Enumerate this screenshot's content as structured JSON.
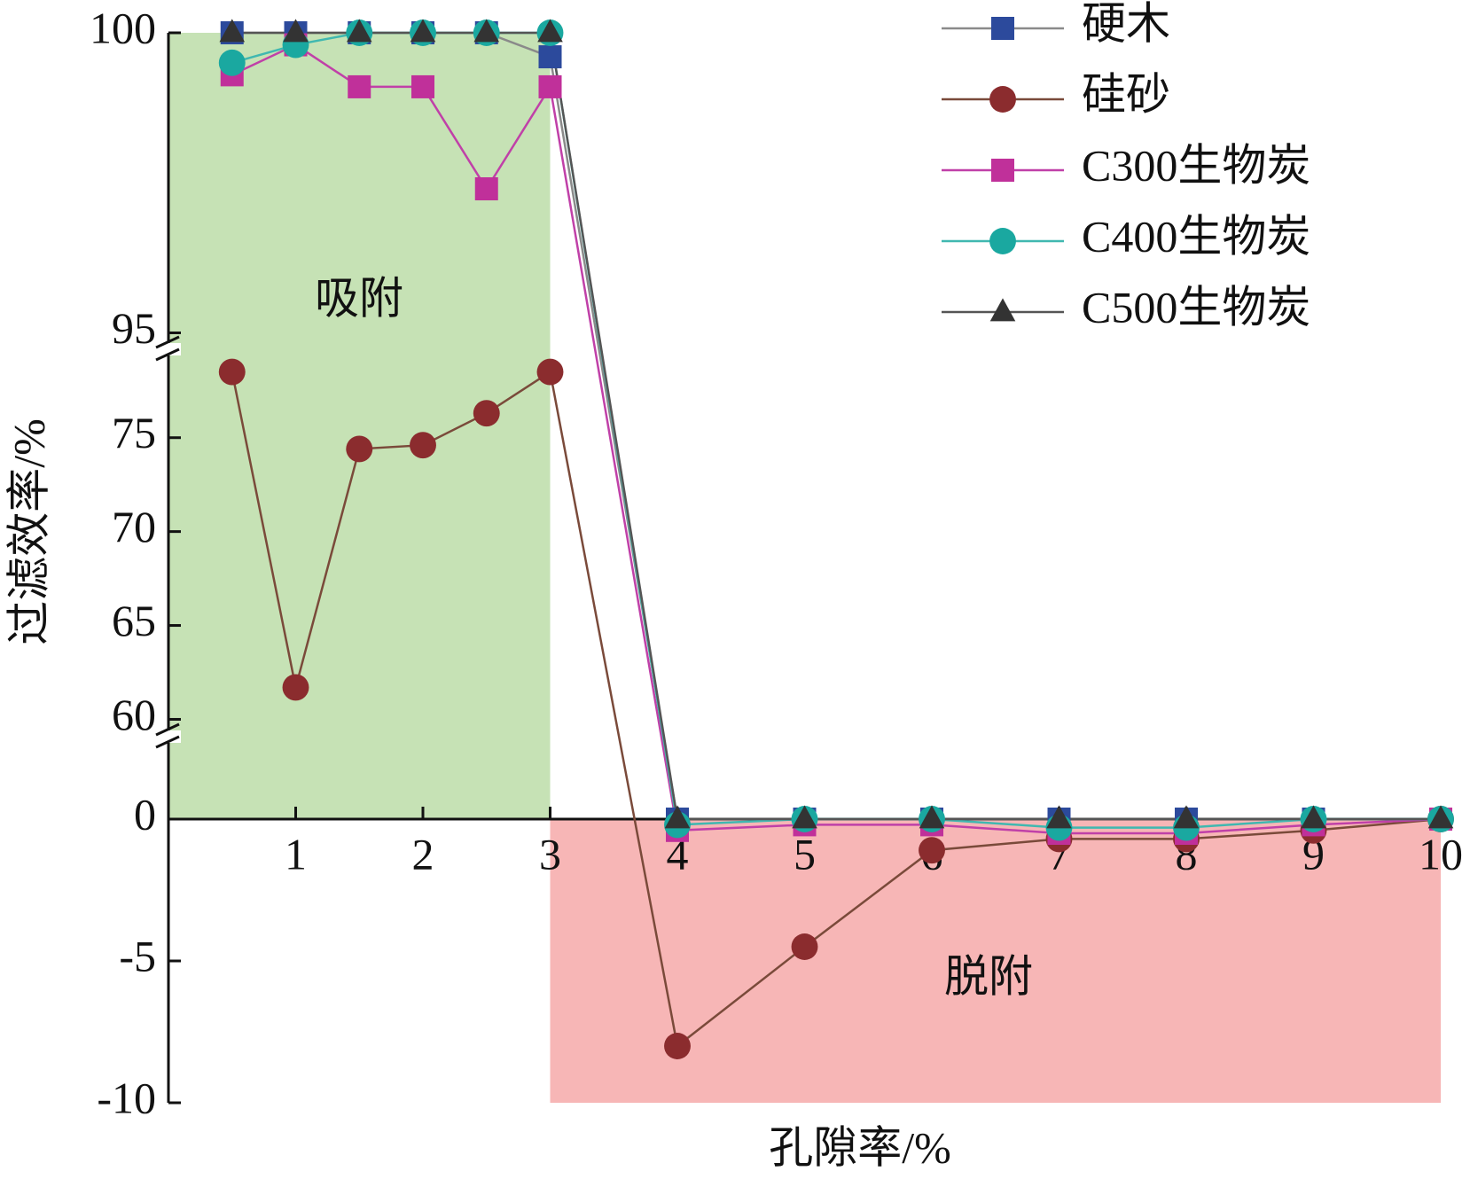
{
  "chart_data": {
    "type": "line",
    "x_label": "孔隙率/%",
    "y_label": "过滤效率/%",
    "x": [
      0.5,
      1,
      1.5,
      2,
      2.5,
      3,
      4,
      5,
      6,
      7,
      8,
      9,
      10
    ],
    "xlim": [
      0,
      10
    ],
    "xticks": [
      1,
      2,
      3,
      4,
      5,
      6,
      7,
      8,
      9,
      10
    ],
    "y_segments": [
      {
        "ylim": [
          -10,
          0
        ],
        "yticks": [
          -10,
          -5,
          0
        ]
      },
      {
        "ylim": [
          58.7,
          79
        ],
        "yticks": [
          60,
          65,
          70,
          75
        ]
      },
      {
        "ylim": [
          94.8,
          100
        ],
        "yticks": [
          95,
          100
        ]
      }
    ],
    "regions": [
      {
        "label": "吸附",
        "xlim": [
          0,
          3
        ],
        "ylim": [
          0,
          100
        ],
        "color": "#c6e2b5"
      },
      {
        "label": "脱附",
        "xlim": [
          3,
          10
        ],
        "ylim": [
          -10,
          0
        ],
        "color": "#f7b6b6"
      }
    ],
    "series": [
      {
        "name": "硬木",
        "color": "#2c4a9c",
        "line_color": "#8a8a8a",
        "marker": "square",
        "values": [
          100,
          100,
          100,
          100,
          100,
          99.6,
          0,
          0,
          0,
          0,
          0,
          0,
          0
        ]
      },
      {
        "name": "硅砂",
        "color": "#8b2c2e",
        "line_color": "#7a4a3a",
        "marker": "circle",
        "values": [
          78.5,
          61.7,
          74.4,
          74.6,
          76.3,
          78.5,
          -8,
          -4.5,
          -1.1,
          -0.7,
          -0.7,
          -0.4,
          0
        ]
      },
      {
        "name": "C300生物炭",
        "color": "#c0309a",
        "line_color": "#c040a8",
        "marker": "square",
        "values": [
          99.3,
          99.8,
          99.1,
          99.1,
          97.4,
          99.1,
          -0.4,
          -0.2,
          -0.2,
          -0.5,
          -0.5,
          -0.2,
          0
        ]
      },
      {
        "name": "C400生物炭",
        "color": "#1aa8a0",
        "line_color": "#40b8b0",
        "marker": "circle",
        "values": [
          99.5,
          99.8,
          100,
          100,
          100,
          100,
          -0.2,
          0,
          0,
          -0.3,
          -0.3,
          0,
          0
        ]
      },
      {
        "name": "C500生物炭",
        "color": "#333333",
        "line_color": "#555555",
        "marker": "triangle",
        "values": [
          100,
          100,
          100,
          100,
          100,
          100,
          0,
          0,
          0,
          0,
          0,
          0,
          0
        ]
      }
    ]
  }
}
